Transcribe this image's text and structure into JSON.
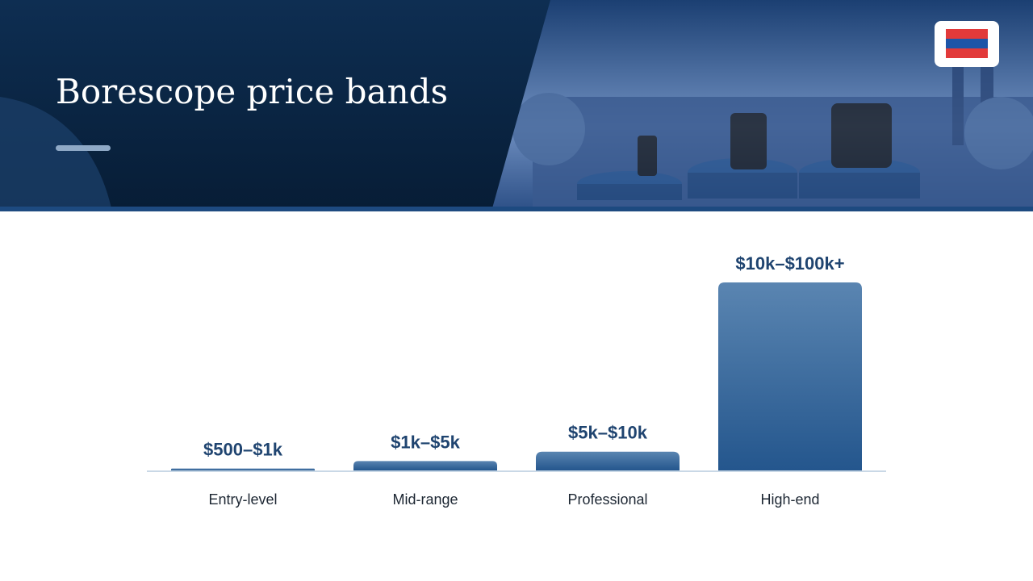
{
  "header": {
    "title": "Borescope price bands"
  },
  "chart_data": {
    "type": "bar",
    "categories": [
      "Entry-level",
      "Mid-range",
      "Professional",
      "High-end"
    ],
    "values": [
      1000,
      5000,
      10000,
      100000
    ],
    "value_labels": [
      "$500–$1k",
      "$1k–$5k",
      "$5k–$10k",
      "$10k–$100k+"
    ],
    "ylim": [
      0,
      100000
    ],
    "color": "#3b6a9c"
  }
}
